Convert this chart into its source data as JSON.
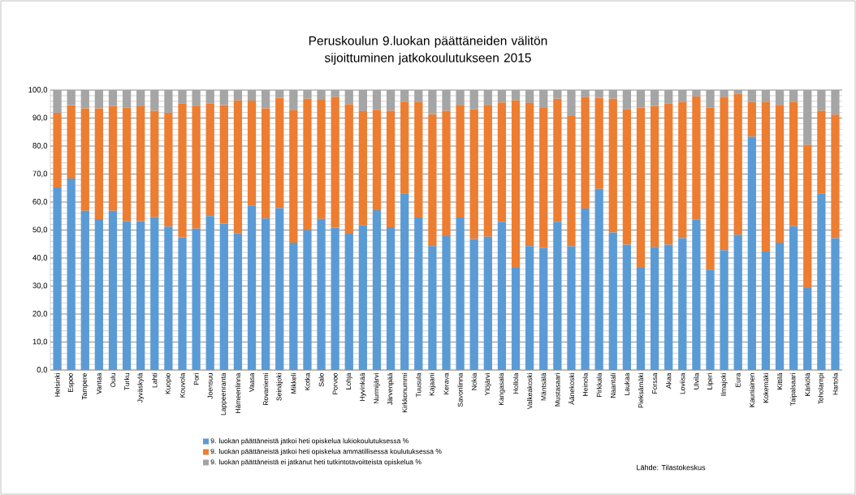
{
  "chart_data": {
    "type": "bar",
    "stacked": true,
    "title": "Peruskoulun 9.luokan päättäneiden välitön sijoittuminen jatkokoulutukseen 2015",
    "categories": [
      "Helsinki",
      "Espoo",
      "Tampere",
      "Vantaa",
      "Oulu",
      "Turku",
      "Jyväskylä",
      "Lahti",
      "Kuopio",
      "Kouvola",
      "Pori",
      "Joensuu",
      "Lappeenranta",
      "Hämeenlinna",
      "Vaasa",
      "Rovaniemi",
      "Seinäjoki",
      "Mikkeli",
      "Kotka",
      "Salo",
      "Porvoo",
      "Lohja",
      "Hyvinkää",
      "Nurmijärvi",
      "Järvenpää",
      "Kirkkonummi",
      "Tuusula",
      "Kajaani",
      "Kerava",
      "Savonlinna",
      "Nokia",
      "Ylöjärvi",
      "Kangasala",
      "Hollola",
      "Valkeakoski",
      "Mäntsälä",
      "Mustasaari",
      "Äänekoski",
      "Heinola",
      "Pirkkala",
      "Naantali",
      "Laukaa",
      "Pieksämäki",
      "Forssa",
      "Akaa",
      "Loviisa",
      "Ulvila",
      "Liperi",
      "Ilmajoki",
      "Eura",
      "Kauniainen",
      "Kokemäki",
      "Kittilä",
      "Taipalsaari",
      "Kärkölä",
      "Toholampi",
      "Hartola"
    ],
    "series": [
      {
        "name": "9. luokan päättäneistä jatkoi heti opiskelua lukiokoulutuksessa %",
        "color": "#5b9bd5",
        "values": [
          65.2,
          68.4,
          56.9,
          53.9,
          56.9,
          53.2,
          53.2,
          54.6,
          51.2,
          47.4,
          50.5,
          55.0,
          52.3,
          48.9,
          58.8,
          54.1,
          57.8,
          45.5,
          50.0,
          54.0,
          50.9,
          48.7,
          51.7,
          57.1,
          51.0,
          63.1,
          54.5,
          44.3,
          47.8,
          54.5,
          46.8,
          47.6,
          53.0,
          36.5,
          44.3,
          43.6,
          53.0,
          44.2,
          57.7,
          64.7,
          49.1,
          44.8,
          36.5,
          44.0,
          44.8,
          47.1,
          53.7,
          35.9,
          42.8,
          48.3,
          83.3,
          42.3,
          45.5,
          51.4,
          29.3,
          63.1,
          47.1
        ]
      },
      {
        "name": "9. luokan päättäneistä jatkoi heti opiskelua ammatillisessa koulutuksessa %",
        "color": "#ed7d31",
        "values": [
          26.7,
          26.2,
          36.6,
          39.6,
          37.4,
          40.5,
          41.0,
          38.0,
          40.7,
          47.8,
          43.9,
          40.1,
          42.3,
          47.4,
          37.4,
          39.4,
          39.4,
          47.3,
          46.9,
          42.5,
          46.6,
          46.2,
          40.8,
          35.9,
          41.6,
          32.8,
          41.2,
          47.1,
          44.8,
          40.2,
          46.4,
          47.1,
          42.6,
          59.8,
          51.1,
          50.0,
          43.9,
          46.5,
          39.8,
          32.5,
          47.8,
          48.3,
          57.3,
          50.3,
          50.4,
          48.6,
          44.0,
          57.8,
          54.7,
          50.3,
          12.4,
          53.4,
          49.2,
          44.3,
          51.1,
          29.5,
          44.1
        ]
      },
      {
        "name": "9. luokan päättäneistä ei jatkanut heti tutkintotavoitteista opiskelua %",
        "color": "#a5a5a5",
        "values": [
          8.1,
          5.4,
          6.5,
          6.5,
          5.7,
          6.3,
          5.8,
          7.4,
          8.1,
          4.8,
          5.6,
          4.9,
          5.4,
          3.7,
          3.8,
          6.5,
          2.8,
          7.2,
          3.1,
          3.5,
          2.5,
          5.1,
          7.5,
          7.0,
          7.4,
          4.1,
          4.3,
          8.6,
          7.4,
          5.3,
          6.8,
          5.3,
          4.4,
          3.7,
          4.6,
          6.4,
          3.1,
          9.3,
          2.5,
          2.8,
          3.1,
          6.9,
          6.2,
          5.7,
          4.8,
          4.3,
          2.3,
          6.3,
          2.5,
          1.4,
          4.3,
          4.3,
          5.3,
          4.3,
          19.6,
          7.4,
          8.8
        ]
      }
    ],
    "ylim": [
      0,
      100
    ],
    "yticks": [
      {
        "value": 0,
        "label": "0,0"
      },
      {
        "value": 10,
        "label": "10,0"
      },
      {
        "value": 20,
        "label": "20,0"
      },
      {
        "value": 30,
        "label": "30,0"
      },
      {
        "value": 40,
        "label": "40,0"
      },
      {
        "value": 50,
        "label": "50,0"
      },
      {
        "value": 60,
        "label": "60,0"
      },
      {
        "value": 70,
        "label": "70,0"
      },
      {
        "value": 80,
        "label": "80,0"
      },
      {
        "value": 90,
        "label": "90,0"
      },
      {
        "value": 100,
        "label": "100,0"
      }
    ],
    "grid": "y",
    "legend": "bottom",
    "annotations": [
      "Lähde: Tilastokeskus"
    ]
  }
}
